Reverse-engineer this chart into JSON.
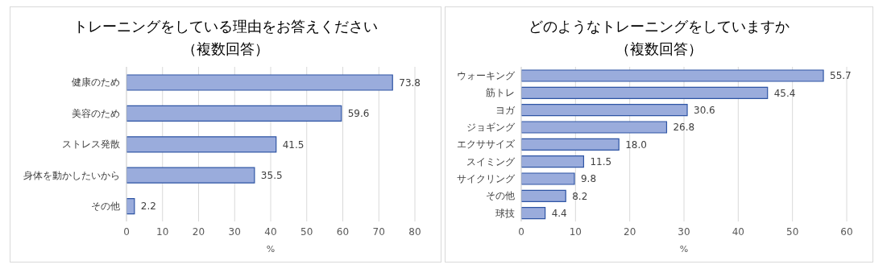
{
  "chart_data": [
    {
      "type": "bar",
      "orientation": "horizontal",
      "title": "トレーニングをしている理由をお答えください",
      "subtitle": "（複数回答）",
      "xlabel": "%",
      "categories": [
        "健康のため",
        "美容のため",
        "ストレス発散",
        "身体を動かしたいから",
        "その他"
      ],
      "values": [
        73.8,
        59.6,
        41.5,
        35.5,
        2.2
      ],
      "value_labels": [
        "73.8",
        "59.6",
        "41.5",
        "35.5",
        "2.2"
      ],
      "color": "#9aacdc",
      "xlim": [
        0,
        80
      ],
      "xticks": [
        0,
        10,
        20,
        30,
        40,
        50,
        60,
        70,
        80
      ],
      "grid": "x"
    },
    {
      "type": "bar",
      "orientation": "horizontal",
      "title": "どのようなトレーニングをしていますか",
      "subtitle": "（複数回答）",
      "xlabel": "%",
      "categories": [
        "ウォーキング",
        "筋トレ",
        "ヨガ",
        "ジョギング",
        "エクササイズ",
        "スイミング",
        "サイクリング",
        "その他",
        "球技"
      ],
      "values": [
        55.7,
        45.4,
        30.6,
        26.8,
        18.0,
        11.5,
        9.8,
        8.2,
        4.4
      ],
      "value_labels": [
        "55.7",
        "45.4",
        "30.6",
        "26.8",
        "18.0",
        "11.5",
        "9.8",
        "8.2",
        "4.4"
      ],
      "color": "#9aacdc",
      "xlim": [
        0,
        60
      ],
      "xticks": [
        0,
        10,
        20,
        30,
        40,
        50,
        60
      ],
      "grid": "x"
    }
  ]
}
